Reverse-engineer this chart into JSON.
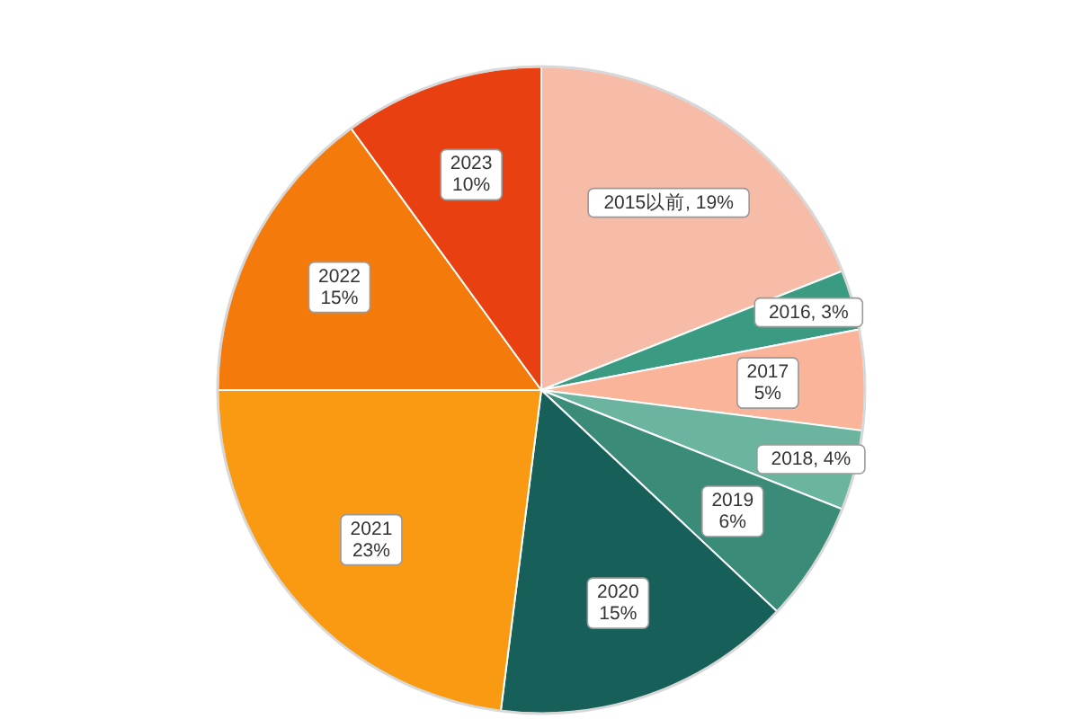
{
  "chart_data": {
    "type": "pie",
    "categories": [
      "2015以前",
      "2016",
      "2017",
      "2018",
      "2019",
      "2020",
      "2021",
      "2022",
      "2023"
    ],
    "values": [
      19,
      3,
      5,
      4,
      6,
      15,
      23,
      15,
      10
    ],
    "value_labels": [
      "19%",
      "3%",
      "5%",
      "4%",
      "6%",
      "15%",
      "23%",
      "15%",
      "10%"
    ],
    "colors": [
      "#f7bca8",
      "#3a9b82",
      "#f9b49a",
      "#6bb49f",
      "#3a8c78",
      "#17605a",
      "#f99a12",
      "#f57a0c",
      "#e84010"
    ]
  }
}
